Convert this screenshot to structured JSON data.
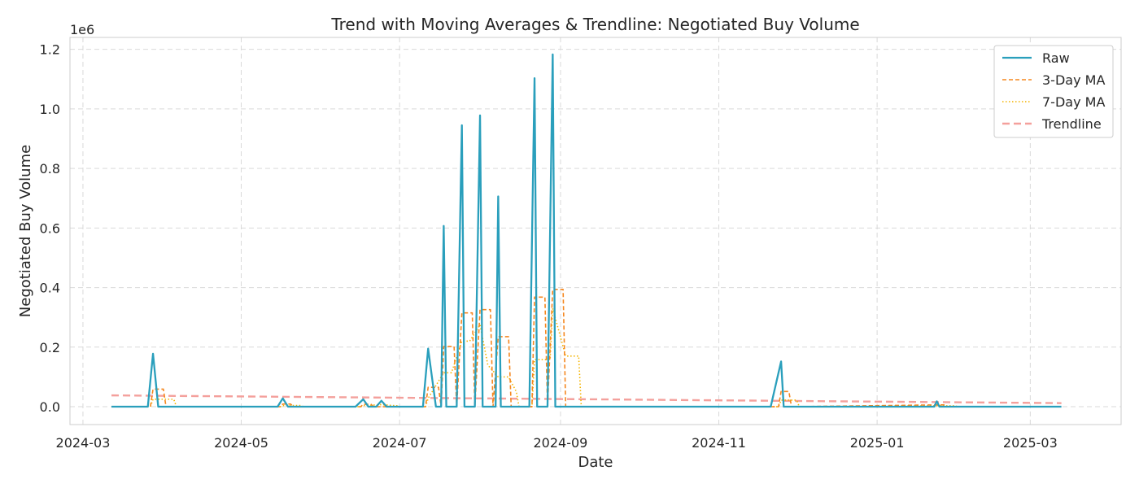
{
  "chart_data": {
    "type": "line",
    "title": "Trend with Moving Averages & Trendline: Negotiated Buy Volume",
    "xlabel": "Date",
    "ylabel": "Negotiated Buy Volume",
    "y_offset_label": "1e6",
    "xlim": [
      "2024-02-25",
      "2025-04-05"
    ],
    "ylim": [
      -0.06,
      1.24
    ],
    "y_ticks": [
      0.0,
      0.2,
      0.4,
      0.6,
      0.8,
      1.0,
      1.2
    ],
    "y_tick_labels": [
      "0.0",
      "0.2",
      "0.4",
      "0.6",
      "0.8",
      "1.0",
      "1.2"
    ],
    "x_ticks": [
      "2024-03-01",
      "2024-05-01",
      "2024-07-01",
      "2024-09-01",
      "2024-11-01",
      "2025-01-01",
      "2025-03-01"
    ],
    "x_tick_labels": [
      "2024-03",
      "2024-05",
      "2024-07",
      "2024-09",
      "2024-11",
      "2025-01",
      "2025-03"
    ],
    "grid": true,
    "legend_position": "top-right",
    "series": [
      {
        "name": "Raw",
        "color": "#2a9fbc",
        "style": "solid",
        "points": [
          [
            "2024-03-12",
            0
          ],
          [
            "2024-03-26",
            0
          ],
          [
            "2024-03-28",
            0.178
          ],
          [
            "2024-03-30",
            0
          ],
          [
            "2024-05-15",
            0
          ],
          [
            "2024-05-17",
            0.028
          ],
          [
            "2024-05-19",
            0
          ],
          [
            "2024-06-14",
            0
          ],
          [
            "2024-06-17",
            0.025
          ],
          [
            "2024-06-19",
            0
          ],
          [
            "2024-06-22",
            0
          ],
          [
            "2024-06-24",
            0.02
          ],
          [
            "2024-06-26",
            0
          ],
          [
            "2024-07-10",
            0
          ],
          [
            "2024-07-12",
            0.195
          ],
          [
            "2024-07-15",
            0
          ],
          [
            "2024-07-17",
            0
          ],
          [
            "2024-07-18",
            0.607
          ],
          [
            "2024-07-19",
            0
          ],
          [
            "2024-07-23",
            0
          ],
          [
            "2024-07-25",
            0.945
          ],
          [
            "2024-07-26",
            0
          ],
          [
            "2024-07-30",
            0
          ],
          [
            "2024-08-01",
            0.978
          ],
          [
            "2024-08-02",
            0
          ],
          [
            "2024-08-07",
            0
          ],
          [
            "2024-08-08",
            0.706
          ],
          [
            "2024-08-09",
            0
          ],
          [
            "2024-08-20",
            0
          ],
          [
            "2024-08-22",
            1.103
          ],
          [
            "2024-08-23",
            0
          ],
          [
            "2024-08-27",
            0
          ],
          [
            "2024-08-29",
            1.183
          ],
          [
            "2024-08-30",
            0
          ],
          [
            "2024-11-21",
            0
          ],
          [
            "2024-11-25",
            0.152
          ],
          [
            "2024-11-26",
            0
          ],
          [
            "2025-01-23",
            0
          ],
          [
            "2025-01-24",
            0.018
          ],
          [
            "2025-01-25",
            0
          ],
          [
            "2025-03-13",
            0
          ]
        ]
      },
      {
        "name": "3-Day MA",
        "color": "#f5871f",
        "style": "dashed",
        "points": [
          [
            "2024-03-12",
            0
          ],
          [
            "2024-03-27",
            0
          ],
          [
            "2024-03-28",
            0.059
          ],
          [
            "2024-04-01",
            0.059
          ],
          [
            "2024-04-02",
            0
          ],
          [
            "2024-05-16",
            0
          ],
          [
            "2024-05-17",
            0.009
          ],
          [
            "2024-05-20",
            0.009
          ],
          [
            "2024-05-21",
            0
          ],
          [
            "2024-06-16",
            0
          ],
          [
            "2024-06-17",
            0.008
          ],
          [
            "2024-06-20",
            0.008
          ],
          [
            "2024-06-21",
            0
          ],
          [
            "2024-07-11",
            0
          ],
          [
            "2024-07-12",
            0.065
          ],
          [
            "2024-07-16",
            0.065
          ],
          [
            "2024-07-17",
            0
          ],
          [
            "2024-07-18",
            0.202
          ],
          [
            "2024-07-22",
            0.202
          ],
          [
            "2024-07-23",
            0
          ],
          [
            "2024-07-25",
            0.315
          ],
          [
            "2024-07-29",
            0.315
          ],
          [
            "2024-07-30",
            0
          ],
          [
            "2024-08-01",
            0.326
          ],
          [
            "2024-08-05",
            0.326
          ],
          [
            "2024-08-06",
            0
          ],
          [
            "2024-08-08",
            0.235
          ],
          [
            "2024-08-12",
            0.235
          ],
          [
            "2024-08-13",
            0
          ],
          [
            "2024-08-21",
            0
          ],
          [
            "2024-08-22",
            0.368
          ],
          [
            "2024-08-26",
            0.368
          ],
          [
            "2024-08-27",
            0
          ],
          [
            "2024-08-29",
            0.394
          ],
          [
            "2024-09-02",
            0.394
          ],
          [
            "2024-09-03",
            0
          ],
          [
            "2024-11-24",
            0
          ],
          [
            "2024-11-25",
            0.051
          ],
          [
            "2024-11-28",
            0.051
          ],
          [
            "2024-11-29",
            0
          ],
          [
            "2025-01-24",
            0.006
          ],
          [
            "2025-01-27",
            0.006
          ],
          [
            "2025-01-28",
            0
          ],
          [
            "2025-03-13",
            0
          ]
        ]
      },
      {
        "name": "7-Day MA",
        "color": "#f4b400",
        "style": "dotted",
        "points": [
          [
            "2024-03-12",
            0
          ],
          [
            "2024-03-27",
            0
          ],
          [
            "2024-03-28",
            0.025
          ],
          [
            "2024-04-05",
            0.025
          ],
          [
            "2024-04-06",
            0
          ],
          [
            "2024-05-16",
            0
          ],
          [
            "2024-05-17",
            0.004
          ],
          [
            "2024-05-24",
            0.004
          ],
          [
            "2024-05-25",
            0
          ],
          [
            "2024-06-16",
            0
          ],
          [
            "2024-06-17",
            0.004
          ],
          [
            "2024-06-24",
            0.007
          ],
          [
            "2024-06-30",
            0.003
          ],
          [
            "2024-07-01",
            0
          ],
          [
            "2024-07-11",
            0
          ],
          [
            "2024-07-12",
            0.028
          ],
          [
            "2024-07-18",
            0.114
          ],
          [
            "2024-07-21",
            0.114
          ],
          [
            "2024-07-25",
            0.22
          ],
          [
            "2024-07-28",
            0.22
          ],
          [
            "2024-08-01",
            0.275
          ],
          [
            "2024-08-04",
            0.14
          ],
          [
            "2024-08-08",
            0.1
          ],
          [
            "2024-08-12",
            0.1
          ],
          [
            "2024-08-15",
            0.05
          ],
          [
            "2024-08-16",
            0
          ],
          [
            "2024-08-21",
            0
          ],
          [
            "2024-08-22",
            0.158
          ],
          [
            "2024-08-28",
            0.158
          ],
          [
            "2024-08-29",
            0.33
          ],
          [
            "2024-09-03",
            0.17
          ],
          [
            "2024-09-08",
            0.17
          ],
          [
            "2024-09-09",
            0
          ],
          [
            "2024-11-24",
            0
          ],
          [
            "2024-11-25",
            0.022
          ],
          [
            "2024-12-01",
            0.022
          ],
          [
            "2024-12-02",
            0
          ],
          [
            "2025-01-24",
            0.003
          ],
          [
            "2025-01-31",
            0.003
          ],
          [
            "2025-02-01",
            0
          ],
          [
            "2025-03-13",
            0
          ]
        ]
      },
      {
        "name": "Trendline",
        "color": "#f4a09c",
        "style": "long-dashed",
        "points": [
          [
            "2024-03-12",
            0.038
          ],
          [
            "2025-03-13",
            0.012
          ]
        ]
      }
    ]
  }
}
